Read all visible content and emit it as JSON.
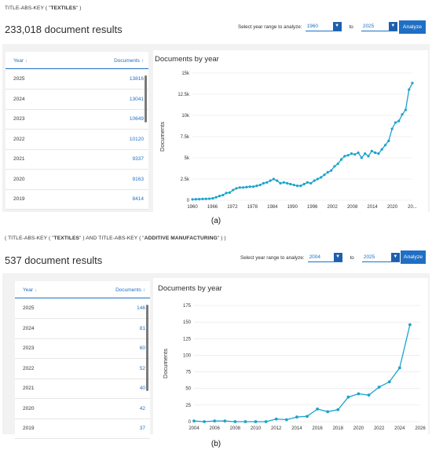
{
  "panel_a": {
    "query_prefix": "TITLE-ABS-KEY",
    "query_open": " ( \"",
    "query_term": "TEXTILES",
    "query_close": "\" )",
    "result_count": "233,018 document results",
    "range_label": "Select year range to analyze:",
    "from_year": "1960",
    "to_label": "to",
    "to_year": "2025",
    "analyze_label": "Analyze",
    "table": {
      "col_year": "Year",
      "col_docs": "Documents",
      "rows": [
        {
          "year": "2025",
          "docs": "13816"
        },
        {
          "year": "2024",
          "docs": "13041"
        },
        {
          "year": "2023",
          "docs": "10649"
        },
        {
          "year": "2022",
          "docs": "10120"
        },
        {
          "year": "2021",
          "docs": "9337"
        },
        {
          "year": "2020",
          "docs": "9163"
        },
        {
          "year": "2019",
          "docs": "8414"
        }
      ]
    },
    "chart_title": "Documents by year",
    "caption": "(a)"
  },
  "panel_b": {
    "query_prefix": "( TITLE-ABS-KEY",
    "query_open": " ( \"",
    "query_term": "TEXTILES",
    "query_mid": "\" )  AND  TITLE-ABS-KEY ( \"",
    "query_term2": "ADDITIVE MANUFACTURING",
    "query_close": "\" ) )",
    "result_count": "537 document results",
    "range_label": "Select year range to analyze:",
    "from_year": "2004",
    "to_label": "to",
    "to_year": "2025",
    "analyze_label": "Analyze",
    "table": {
      "col_year": "Year",
      "col_docs": "Documents",
      "rows": [
        {
          "year": "2025",
          "docs": "146"
        },
        {
          "year": "2024",
          "docs": "81"
        },
        {
          "year": "2023",
          "docs": "60"
        },
        {
          "year": "2022",
          "docs": "52"
        },
        {
          "year": "2021",
          "docs": "40"
        },
        {
          "year": "2020",
          "docs": "42"
        },
        {
          "year": "2019",
          "docs": "37"
        }
      ]
    },
    "chart_title": "Documents by year",
    "caption": "(b)"
  },
  "colors": {
    "accent": "#1f6fc4",
    "line": "#1ba3cc",
    "sort_arrow": "#e87a1e"
  },
  "chart_data": [
    {
      "type": "line",
      "title": "Documents by year",
      "xlabel": "",
      "ylabel": "Documents",
      "x_ticks": [
        "1960",
        "1966",
        "1972",
        "1978",
        "1984",
        "1990",
        "1996",
        "2002",
        "2008",
        "2014",
        "2020",
        "20..."
      ],
      "y_ticks": [
        "0",
        "2.5k",
        "5k",
        "7.5k",
        "10k",
        "12.5k",
        "15k"
      ],
      "xlim": [
        1960,
        2025
      ],
      "ylim": [
        0,
        15000
      ],
      "grid": "horizontal",
      "series": [
        {
          "x": [
            1960,
            1961,
            1962,
            1963,
            1964,
            1965,
            1966,
            1967,
            1968,
            1969,
            1970,
            1971,
            1972,
            1973,
            1974,
            1975,
            1976,
            1977,
            1978,
            1979,
            1980,
            1981,
            1982,
            1983,
            1984,
            1985,
            1986,
            1987,
            1988,
            1989,
            1990,
            1991,
            1992,
            1993,
            1994,
            1995,
            1996,
            1997,
            1998,
            1999,
            2000,
            2001,
            2002,
            2003,
            2004,
            2005,
            2006,
            2007,
            2008,
            2009,
            2010,
            2011,
            2012,
            2013,
            2014,
            2015,
            2016,
            2017,
            2018,
            2019,
            2020,
            2021,
            2022,
            2023,
            2024,
            2025
          ],
          "y": [
            100,
            120,
            130,
            150,
            160,
            180,
            220,
            350,
            500,
            600,
            850,
            900,
            1200,
            1400,
            1500,
            1500,
            1550,
            1600,
            1600,
            1700,
            1800,
            2000,
            2100,
            2300,
            2500,
            2300,
            2000,
            2100,
            2000,
            1900,
            1800,
            1700,
            1700,
            1900,
            2100,
            2000,
            2300,
            2500,
            2700,
            3000,
            3300,
            3500,
            4000,
            4300,
            4800,
            5200,
            5300,
            5500,
            5400,
            5600,
            5000,
            5500,
            5200,
            5800,
            5600,
            5500,
            6000,
            6500,
            7000,
            8414,
            9163,
            9337,
            10120,
            10649,
            13041,
            13816
          ]
        }
      ]
    },
    {
      "type": "line",
      "title": "Documents by year",
      "xlabel": "",
      "ylabel": "Documents",
      "x_ticks": [
        "2004",
        "2006",
        "2008",
        "2010",
        "2012",
        "2014",
        "2016",
        "2018",
        "2020",
        "2022",
        "2024",
        "2026"
      ],
      "y_ticks": [
        "0",
        "25",
        "50",
        "75",
        "100",
        "125",
        "150",
        "175"
      ],
      "xlim": [
        2004,
        2026
      ],
      "ylim": [
        0,
        175
      ],
      "grid": "horizontal",
      "series": [
        {
          "x": [
            2004,
            2005,
            2006,
            2007,
            2008,
            2009,
            2010,
            2011,
            2012,
            2013,
            2014,
            2015,
            2016,
            2017,
            2018,
            2019,
            2020,
            2021,
            2022,
            2023,
            2024,
            2025
          ],
          "y": [
            1,
            0,
            1,
            1,
            0,
            0,
            0,
            0,
            4,
            3,
            7,
            8,
            19,
            15,
            18,
            37,
            42,
            40,
            52,
            60,
            81,
            146
          ]
        }
      ]
    }
  ]
}
